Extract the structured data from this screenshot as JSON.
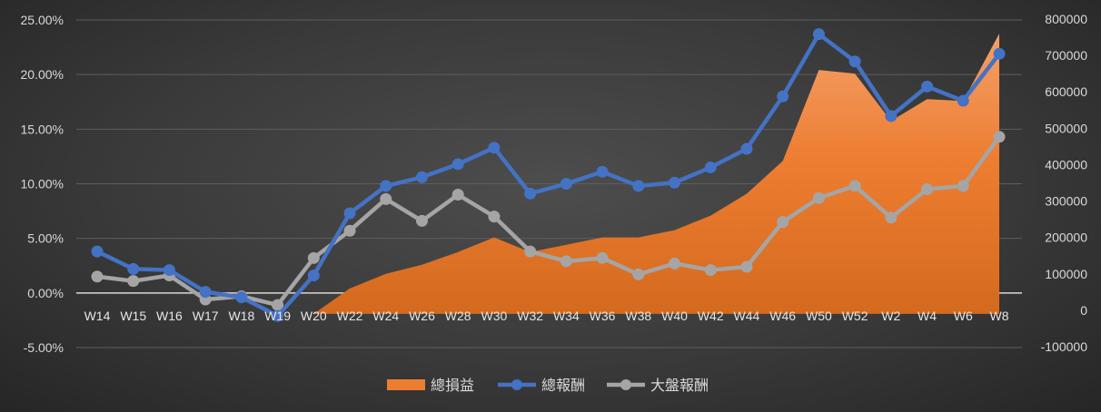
{
  "chart_data": {
    "type": "line",
    "title": "",
    "categories": [
      "W14",
      "W15",
      "W16",
      "W17",
      "W18",
      "W19",
      "W20",
      "W22",
      "W24",
      "W26",
      "W28",
      "W30",
      "W32",
      "W34",
      "W36",
      "W38",
      "W40",
      "W42",
      "W44",
      "W46",
      "W50",
      "W52",
      "W2",
      "W4",
      "W6",
      "W8"
    ],
    "left_axis": {
      "ylim": [
        -5,
        25
      ],
      "ticks": [
        "25.00%",
        "20.00%",
        "15.00%",
        "10.00%",
        "5.00%",
        "0.00%",
        "-5.00%"
      ],
      "tick_values": [
        25,
        20,
        15,
        10,
        5,
        0,
        -5
      ]
    },
    "right_axis": {
      "ylim": [
        -100000,
        800000
      ],
      "ticks": [
        "800000",
        "700000",
        "600000",
        "500000",
        "400000",
        "300000",
        "200000",
        "100000",
        "0",
        "-100000"
      ],
      "tick_values": [
        800000,
        700000,
        600000,
        500000,
        400000,
        300000,
        200000,
        100000,
        0,
        -100000
      ]
    },
    "series": [
      {
        "name": "總損益",
        "type": "area",
        "axis": "right",
        "color": "#ed7d31",
        "values": [
          -10000,
          -10000,
          -10000,
          -10000,
          -10000,
          -10000,
          -10000,
          60000,
          100000,
          125000,
          160000,
          200000,
          160000,
          180000,
          200000,
          200000,
          220000,
          260000,
          320000,
          410000,
          660000,
          650000,
          520000,
          580000,
          575000,
          760000
        ]
      },
      {
        "name": "總報酬",
        "type": "line",
        "axis": "left",
        "color": "#4472c4",
        "values": [
          3.8,
          2.2,
          2.1,
          0.1,
          -0.4,
          -2.1,
          1.6,
          7.3,
          9.8,
          10.6,
          11.8,
          13.3,
          9.1,
          10.0,
          11.1,
          9.8,
          10.1,
          11.5,
          13.2,
          18.0,
          23.7,
          21.2,
          16.2,
          18.9,
          17.6,
          21.9
        ]
      },
      {
        "name": "大盤報酬",
        "type": "line",
        "axis": "left",
        "color": "#a5a5a5",
        "values": [
          1.5,
          1.1,
          1.6,
          -0.6,
          -0.3,
          -1.1,
          3.2,
          5.7,
          8.6,
          6.6,
          9.0,
          7.0,
          3.8,
          2.9,
          3.2,
          1.7,
          2.7,
          2.1,
          2.4,
          6.5,
          8.7,
          9.8,
          6.9,
          9.5,
          9.8,
          14.3
        ]
      }
    ],
    "grid": true,
    "legend_position": "bottom"
  }
}
